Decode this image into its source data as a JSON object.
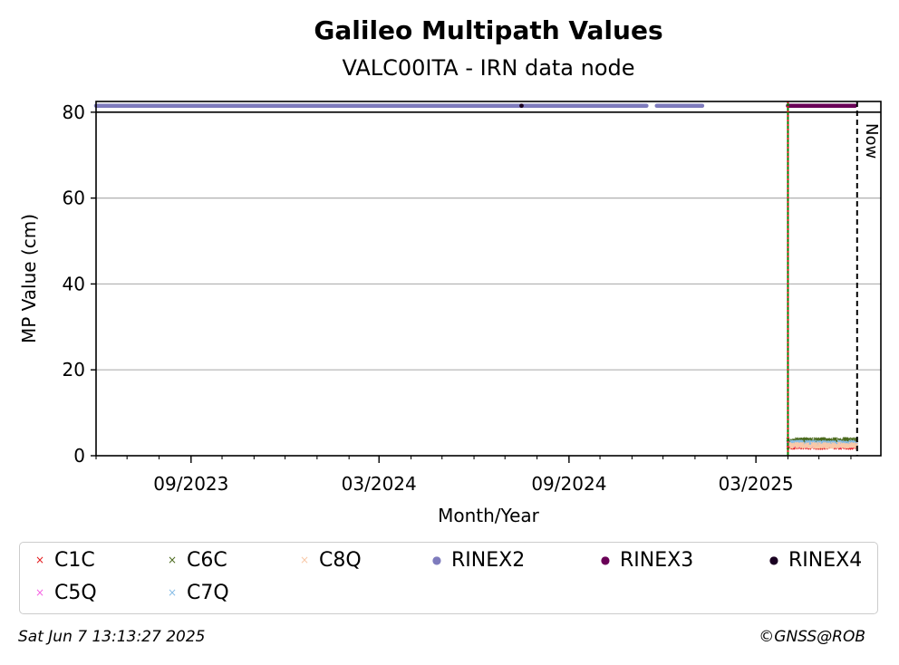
{
  "chart_data": {
    "type": "scatter",
    "title": "Galileo Multipath Values",
    "subtitle": "VALC00ITA - IRN data node",
    "xlabel": "Month/Year",
    "ylabel": "MP Value (cm)",
    "xlim": [
      "2023-06-01",
      "2025-06-30"
    ],
    "ylim": [
      0,
      82.5
    ],
    "yticks": [
      0,
      20,
      40,
      60,
      80
    ],
    "xticks": [
      {
        "date": "2023-09-01",
        "label": "09/2023"
      },
      {
        "date": "2024-03-01",
        "label": "03/2024"
      },
      {
        "date": "2024-09-01",
        "label": "09/2024"
      },
      {
        "date": "2025-03-01",
        "label": "03/2025"
      }
    ],
    "grid": "horizontal",
    "now_label": "Now",
    "now_date": "2025-06-07",
    "vertical_markers": [
      {
        "date": "2025-04-01",
        "color": "#008000",
        "style": "solid"
      },
      {
        "date": "2025-04-01",
        "color": "#e41a1c",
        "style": "dotted"
      }
    ],
    "series": [
      {
        "name": "C1C",
        "marker": "x",
        "color": "#e41a1c",
        "type": "mp",
        "x_range": [
          "2025-04-01",
          "2025-06-05"
        ],
        "y_mean": 2.2
      },
      {
        "name": "C5Q",
        "marker": "x",
        "color": "#f564e3",
        "type": "mp",
        "x_range": [
          "2025-04-01",
          "2025-06-05"
        ],
        "y_mean": 2.6
      },
      {
        "name": "C6C",
        "marker": "x",
        "color": "#4c6b1f",
        "type": "mp",
        "x_range": [
          "2025-04-01",
          "2025-06-05"
        ],
        "y_mean": 3.5
      },
      {
        "name": "C7Q",
        "marker": "x",
        "color": "#88bde6",
        "type": "mp",
        "x_range": [
          "2025-04-01",
          "2025-06-05"
        ],
        "y_mean": 2.9
      },
      {
        "name": "C8Q",
        "marker": "x",
        "color": "#f8c9a8",
        "type": "mp",
        "x_range": [
          "2025-04-01",
          "2025-06-05"
        ],
        "y_mean": 2.4
      },
      {
        "name": "RINEX2",
        "marker": "o",
        "color": "#7e7bbd",
        "type": "availability",
        "segments": [
          [
            "2023-06-01",
            "2024-11-15"
          ],
          [
            "2024-11-25",
            "2025-01-08"
          ]
        ],
        "y": 81.5
      },
      {
        "name": "RINEX3",
        "marker": "o",
        "color": "#6a0057",
        "type": "availability",
        "segments": [
          [
            "2025-04-01",
            "2025-06-05"
          ]
        ],
        "y": 81.5
      },
      {
        "name": "RINEX4",
        "marker": "o",
        "color": "#1a0021",
        "type": "availability",
        "points": [
          "2024-07-17"
        ],
        "y": 81.5
      }
    ],
    "legend_placement": "bottom"
  },
  "legend": [
    {
      "label": "C1C",
      "glyph": "×",
      "color": "#e41a1c"
    },
    {
      "label": "C6C",
      "glyph": "×",
      "color": "#4c6b1f"
    },
    {
      "label": "C8Q",
      "glyph": "×",
      "color": "#f8c9a8"
    },
    {
      "label": "RINEX2",
      "glyph": "●",
      "color": "#7e7bbd"
    },
    {
      "label": "RINEX3",
      "glyph": "●",
      "color": "#6a0057"
    },
    {
      "label": "RINEX4",
      "glyph": "●",
      "color": "#1a0021"
    },
    {
      "label": "C5Q",
      "glyph": "×",
      "color": "#f564e3"
    },
    {
      "label": "C7Q",
      "glyph": "×",
      "color": "#88bde6"
    }
  ],
  "footer": {
    "timestamp": "Sat Jun  7 13:13:27 2025",
    "credit": "©GNSS@ROB"
  }
}
